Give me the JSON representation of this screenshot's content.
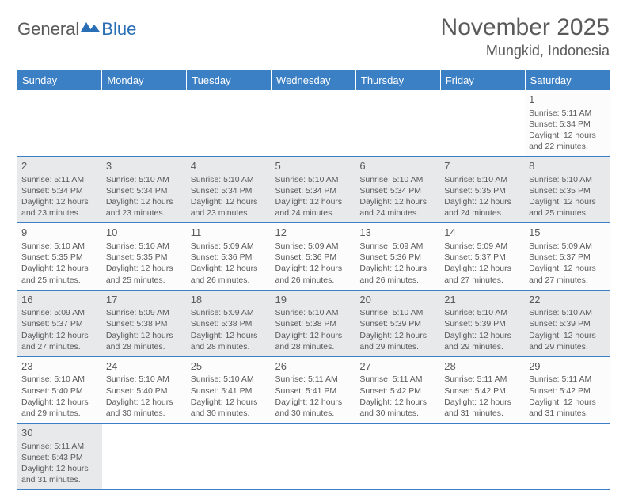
{
  "logo": {
    "part1": "General",
    "part2": "Blue"
  },
  "title": "November 2025",
  "location": "Mungkid, Indonesia",
  "colors": {
    "header_bg": "#3b7fc4",
    "header_text": "#ffffff",
    "body_text": "#5a5a5a",
    "shaded_bg": "#e8e9ea",
    "border": "#3b7fc4",
    "logo_blue": "#2a6fb5"
  },
  "day_names": [
    "Sunday",
    "Monday",
    "Tuesday",
    "Wednesday",
    "Thursday",
    "Friday",
    "Saturday"
  ],
  "weeks": [
    [
      null,
      null,
      null,
      null,
      null,
      null,
      {
        "n": "1",
        "sr": "5:11 AM",
        "ss": "5:34 PM",
        "dl": "12 hours and 22 minutes."
      }
    ],
    [
      {
        "n": "2",
        "sr": "5:11 AM",
        "ss": "5:34 PM",
        "dl": "12 hours and 23 minutes."
      },
      {
        "n": "3",
        "sr": "5:10 AM",
        "ss": "5:34 PM",
        "dl": "12 hours and 23 minutes."
      },
      {
        "n": "4",
        "sr": "5:10 AM",
        "ss": "5:34 PM",
        "dl": "12 hours and 23 minutes."
      },
      {
        "n": "5",
        "sr": "5:10 AM",
        "ss": "5:34 PM",
        "dl": "12 hours and 24 minutes."
      },
      {
        "n": "6",
        "sr": "5:10 AM",
        "ss": "5:34 PM",
        "dl": "12 hours and 24 minutes."
      },
      {
        "n": "7",
        "sr": "5:10 AM",
        "ss": "5:35 PM",
        "dl": "12 hours and 24 minutes."
      },
      {
        "n": "8",
        "sr": "5:10 AM",
        "ss": "5:35 PM",
        "dl": "12 hours and 25 minutes."
      }
    ],
    [
      {
        "n": "9",
        "sr": "5:10 AM",
        "ss": "5:35 PM",
        "dl": "12 hours and 25 minutes."
      },
      {
        "n": "10",
        "sr": "5:10 AM",
        "ss": "5:35 PM",
        "dl": "12 hours and 25 minutes."
      },
      {
        "n": "11",
        "sr": "5:09 AM",
        "ss": "5:36 PM",
        "dl": "12 hours and 26 minutes."
      },
      {
        "n": "12",
        "sr": "5:09 AM",
        "ss": "5:36 PM",
        "dl": "12 hours and 26 minutes."
      },
      {
        "n": "13",
        "sr": "5:09 AM",
        "ss": "5:36 PM",
        "dl": "12 hours and 26 minutes."
      },
      {
        "n": "14",
        "sr": "5:09 AM",
        "ss": "5:37 PM",
        "dl": "12 hours and 27 minutes."
      },
      {
        "n": "15",
        "sr": "5:09 AM",
        "ss": "5:37 PM",
        "dl": "12 hours and 27 minutes."
      }
    ],
    [
      {
        "n": "16",
        "sr": "5:09 AM",
        "ss": "5:37 PM",
        "dl": "12 hours and 27 minutes."
      },
      {
        "n": "17",
        "sr": "5:09 AM",
        "ss": "5:38 PM",
        "dl": "12 hours and 28 minutes."
      },
      {
        "n": "18",
        "sr": "5:09 AM",
        "ss": "5:38 PM",
        "dl": "12 hours and 28 minutes."
      },
      {
        "n": "19",
        "sr": "5:10 AM",
        "ss": "5:38 PM",
        "dl": "12 hours and 28 minutes."
      },
      {
        "n": "20",
        "sr": "5:10 AM",
        "ss": "5:39 PM",
        "dl": "12 hours and 29 minutes."
      },
      {
        "n": "21",
        "sr": "5:10 AM",
        "ss": "5:39 PM",
        "dl": "12 hours and 29 minutes."
      },
      {
        "n": "22",
        "sr": "5:10 AM",
        "ss": "5:39 PM",
        "dl": "12 hours and 29 minutes."
      }
    ],
    [
      {
        "n": "23",
        "sr": "5:10 AM",
        "ss": "5:40 PM",
        "dl": "12 hours and 29 minutes."
      },
      {
        "n": "24",
        "sr": "5:10 AM",
        "ss": "5:40 PM",
        "dl": "12 hours and 30 minutes."
      },
      {
        "n": "25",
        "sr": "5:10 AM",
        "ss": "5:41 PM",
        "dl": "12 hours and 30 minutes."
      },
      {
        "n": "26",
        "sr": "5:11 AM",
        "ss": "5:41 PM",
        "dl": "12 hours and 30 minutes."
      },
      {
        "n": "27",
        "sr": "5:11 AM",
        "ss": "5:42 PM",
        "dl": "12 hours and 30 minutes."
      },
      {
        "n": "28",
        "sr": "5:11 AM",
        "ss": "5:42 PM",
        "dl": "12 hours and 31 minutes."
      },
      {
        "n": "29",
        "sr": "5:11 AM",
        "ss": "5:42 PM",
        "dl": "12 hours and 31 minutes."
      }
    ],
    [
      {
        "n": "30",
        "sr": "5:11 AM",
        "ss": "5:43 PM",
        "dl": "12 hours and 31 minutes."
      },
      null,
      null,
      null,
      null,
      null,
      null
    ]
  ],
  "labels": {
    "sunrise": "Sunrise:",
    "sunset": "Sunset:",
    "daylight": "Daylight:"
  }
}
